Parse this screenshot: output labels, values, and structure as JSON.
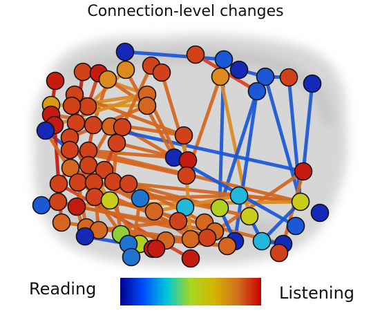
{
  "title": "Connection-level changes",
  "colorbar": {
    "left_label": "Reading",
    "right_label": "Listening",
    "colors": [
      "#00008f",
      "#0050ff",
      "#00c8d8",
      "#a8d820",
      "#d2b400",
      "#d2701e",
      "#c80000"
    ]
  },
  "palette": {
    "orange": "#d4661e",
    "orange_light": "#dc8a20",
    "red": "#c41a0f",
    "red_orange": "#d2421a",
    "amber": "#d89a18",
    "yellow": "#c8cc1a",
    "yellow_green": "#b0d21e",
    "green": "#8ccf3a",
    "cyan": "#22b8dc",
    "blue": "#1e74d0",
    "blue_mid": "#1a58d6",
    "navy": "#1628b8"
  }
}
